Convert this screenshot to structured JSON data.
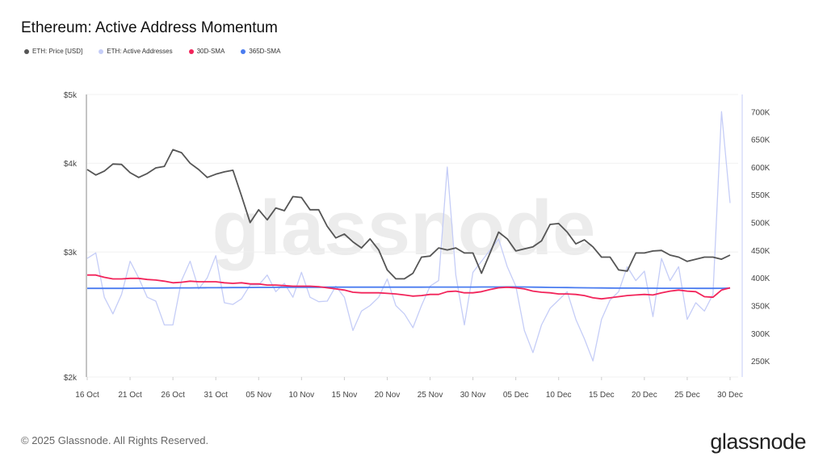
{
  "title": "Ethereum: Active Address Momentum",
  "footer": "© 2025 Glassnode. All Rights Reserved.",
  "logo": "glassnode",
  "watermark": "glassnode",
  "chart_data": {
    "type": "line",
    "title": "Ethereum: Active Address Momentum",
    "x_start": "2024-10-16",
    "x_end": "2024-12-30",
    "x_tick_labels": [
      "16 Oct",
      "21 Oct",
      "26 Oct",
      "31 Oct",
      "05 Nov",
      "10 Nov",
      "15 Nov",
      "20 Nov",
      "25 Nov",
      "30 Nov",
      "05 Dec",
      "10 Dec",
      "15 Dec",
      "20 Dec",
      "25 Dec",
      "30 Dec"
    ],
    "left_axis": {
      "scale": "log",
      "ylim": [
        2000,
        5000
      ],
      "tick_values": [
        2000,
        3000,
        4000,
        5000
      ],
      "tick_labels": [
        "$2k",
        "$3k",
        "$4k",
        "$5k"
      ]
    },
    "right_axis": {
      "scale": "linear",
      "ylim": [
        221000,
        731000
      ],
      "tick_values": [
        250000,
        300000,
        350000,
        400000,
        450000,
        500000,
        550000,
        600000,
        650000,
        700000
      ],
      "tick_labels": [
        "250K",
        "300K",
        "350K",
        "400K",
        "450K",
        "500K",
        "550K",
        "600K",
        "650K",
        "700K"
      ]
    },
    "grid": true,
    "legend_placement": "top-left",
    "series": [
      {
        "name": "ETH: Price [USD]",
        "axis": "left",
        "color": "#555555",
        "values": [
          3920,
          3850,
          3900,
          3990,
          3985,
          3880,
          3820,
          3870,
          3940,
          3960,
          4180,
          4140,
          4000,
          3920,
          3820,
          3860,
          3890,
          3910,
          3600,
          3300,
          3440,
          3330,
          3460,
          3430,
          3590,
          3580,
          3440,
          3440,
          3260,
          3140,
          3180,
          3100,
          3040,
          3130,
          3020,
          2830,
          2750,
          2750,
          2800,
          2950,
          2960,
          3040,
          3020,
          3040,
          2990,
          2990,
          2800,
          2990,
          3200,
          3130,
          3010,
          3030,
          3050,
          3110,
          3280,
          3290,
          3200,
          3080,
          3120,
          3050,
          2950,
          2950,
          2830,
          2820,
          2990,
          2990,
          3010,
          3015,
          2970,
          2950,
          2910,
          2930,
          2950,
          2950,
          2930,
          2970
        ]
      },
      {
        "name": "ETH: Active Addresses",
        "axis": "right",
        "color": "#c5cdf7",
        "values": [
          435000,
          445000,
          365000,
          335000,
          370000,
          430000,
          400000,
          365000,
          358000,
          315000,
          315000,
          395000,
          430000,
          380000,
          400000,
          440000,
          355000,
          352000,
          362000,
          387000,
          387000,
          405000,
          375000,
          390000,
          365000,
          410000,
          365000,
          357000,
          358000,
          385000,
          365000,
          305000,
          340000,
          350000,
          365000,
          398000,
          350000,
          335000,
          310000,
          350000,
          385000,
          395000,
          600000,
          405000,
          315000,
          410000,
          430000,
          450000,
          470000,
          420000,
          385000,
          305000,
          265000,
          315000,
          345000,
          360000,
          375000,
          325000,
          290000,
          250000,
          325000,
          360000,
          375000,
          420000,
          395000,
          412000,
          330000,
          435000,
          395000,
          420000,
          325000,
          355000,
          340000,
          370000,
          700000,
          535000
        ]
      },
      {
        "name": "30D-SMA",
        "axis": "right",
        "color": "#f2245a",
        "values": [
          405000,
          405000,
          401000,
          398000,
          398000,
          399000,
          399000,
          397000,
          396000,
          394000,
          391000,
          392000,
          394000,
          393000,
          393000,
          393000,
          391000,
          390000,
          391000,
          389000,
          389000,
          387000,
          387000,
          386000,
          385000,
          385000,
          385000,
          384000,
          382000,
          380000,
          378000,
          374000,
          373000,
          373000,
          373000,
          372000,
          371000,
          369000,
          367000,
          368000,
          370000,
          370000,
          375000,
          376000,
          373000,
          373000,
          375000,
          379000,
          382000,
          383000,
          382000,
          380000,
          376000,
          374000,
          373000,
          371000,
          371000,
          370000,
          368000,
          364000,
          362000,
          364000,
          366000,
          368000,
          369000,
          370000,
          369000,
          373000,
          376000,
          378000,
          376000,
          375000,
          366000,
          365000,
          378000,
          382000
        ]
      },
      {
        "name": "365D-SMA",
        "axis": "right",
        "color": "#4a7cf0",
        "values": [
          381000,
          381000,
          381000,
          381000,
          381000,
          381200,
          381300,
          381400,
          381500,
          381600,
          381700,
          381800,
          381900,
          382000,
          382100,
          382200,
          382300,
          382400,
          382500,
          382600,
          382700,
          382800,
          382900,
          383000,
          383000,
          383000,
          383100,
          383100,
          383200,
          383200,
          383200,
          383200,
          383200,
          383200,
          383200,
          383200,
          383200,
          383200,
          383200,
          383200,
          383300,
          383300,
          383300,
          383300,
          383300,
          383300,
          383400,
          383400,
          383500,
          383600,
          383600,
          383400,
          383200,
          383000,
          382800,
          382600,
          382400,
          382200,
          382000,
          381800,
          381700,
          381600,
          381500,
          381400,
          381400,
          381300,
          381300,
          381200,
          381200,
          381100,
          381100,
          381000,
          381000,
          381000,
          381200,
          381500
        ]
      }
    ]
  }
}
